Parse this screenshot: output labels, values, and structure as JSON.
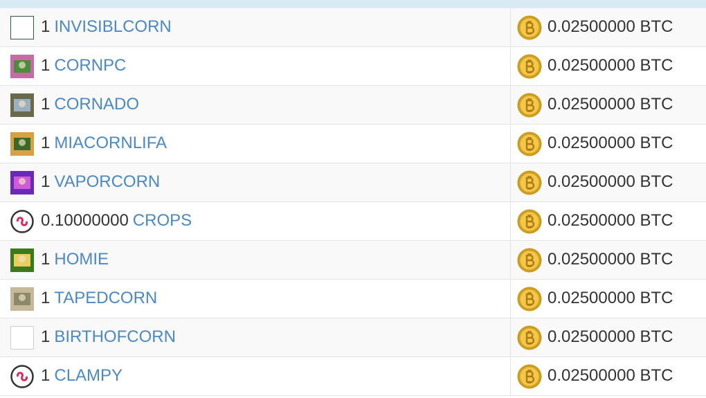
{
  "table": {
    "rows": [
      [
        "1",
        "INVISIBLCORN",
        "0.02500000 BTC"
      ],
      [
        "1",
        "CORNPC",
        "0.02500000 BTC"
      ],
      [
        "1",
        "CORNADO",
        "0.02500000 BTC"
      ],
      [
        "1",
        "MIACORNLIFA",
        "0.02500000 BTC"
      ],
      [
        "1",
        "VAPORCORN",
        "0.02500000 BTC"
      ],
      [
        "0.10000000",
        "CROPS",
        "0.02500000 BTC"
      ],
      [
        "1",
        "HOMIE",
        "0.02500000 BTC"
      ],
      [
        "1",
        "TAPEDCORN",
        "0.02500000 BTC"
      ],
      [
        "1",
        "BIRTHOFCORN",
        "0.02500000 BTC"
      ],
      [
        "1",
        "CLAMPY",
        "0.02500000 BTC"
      ]
    ]
  }
}
